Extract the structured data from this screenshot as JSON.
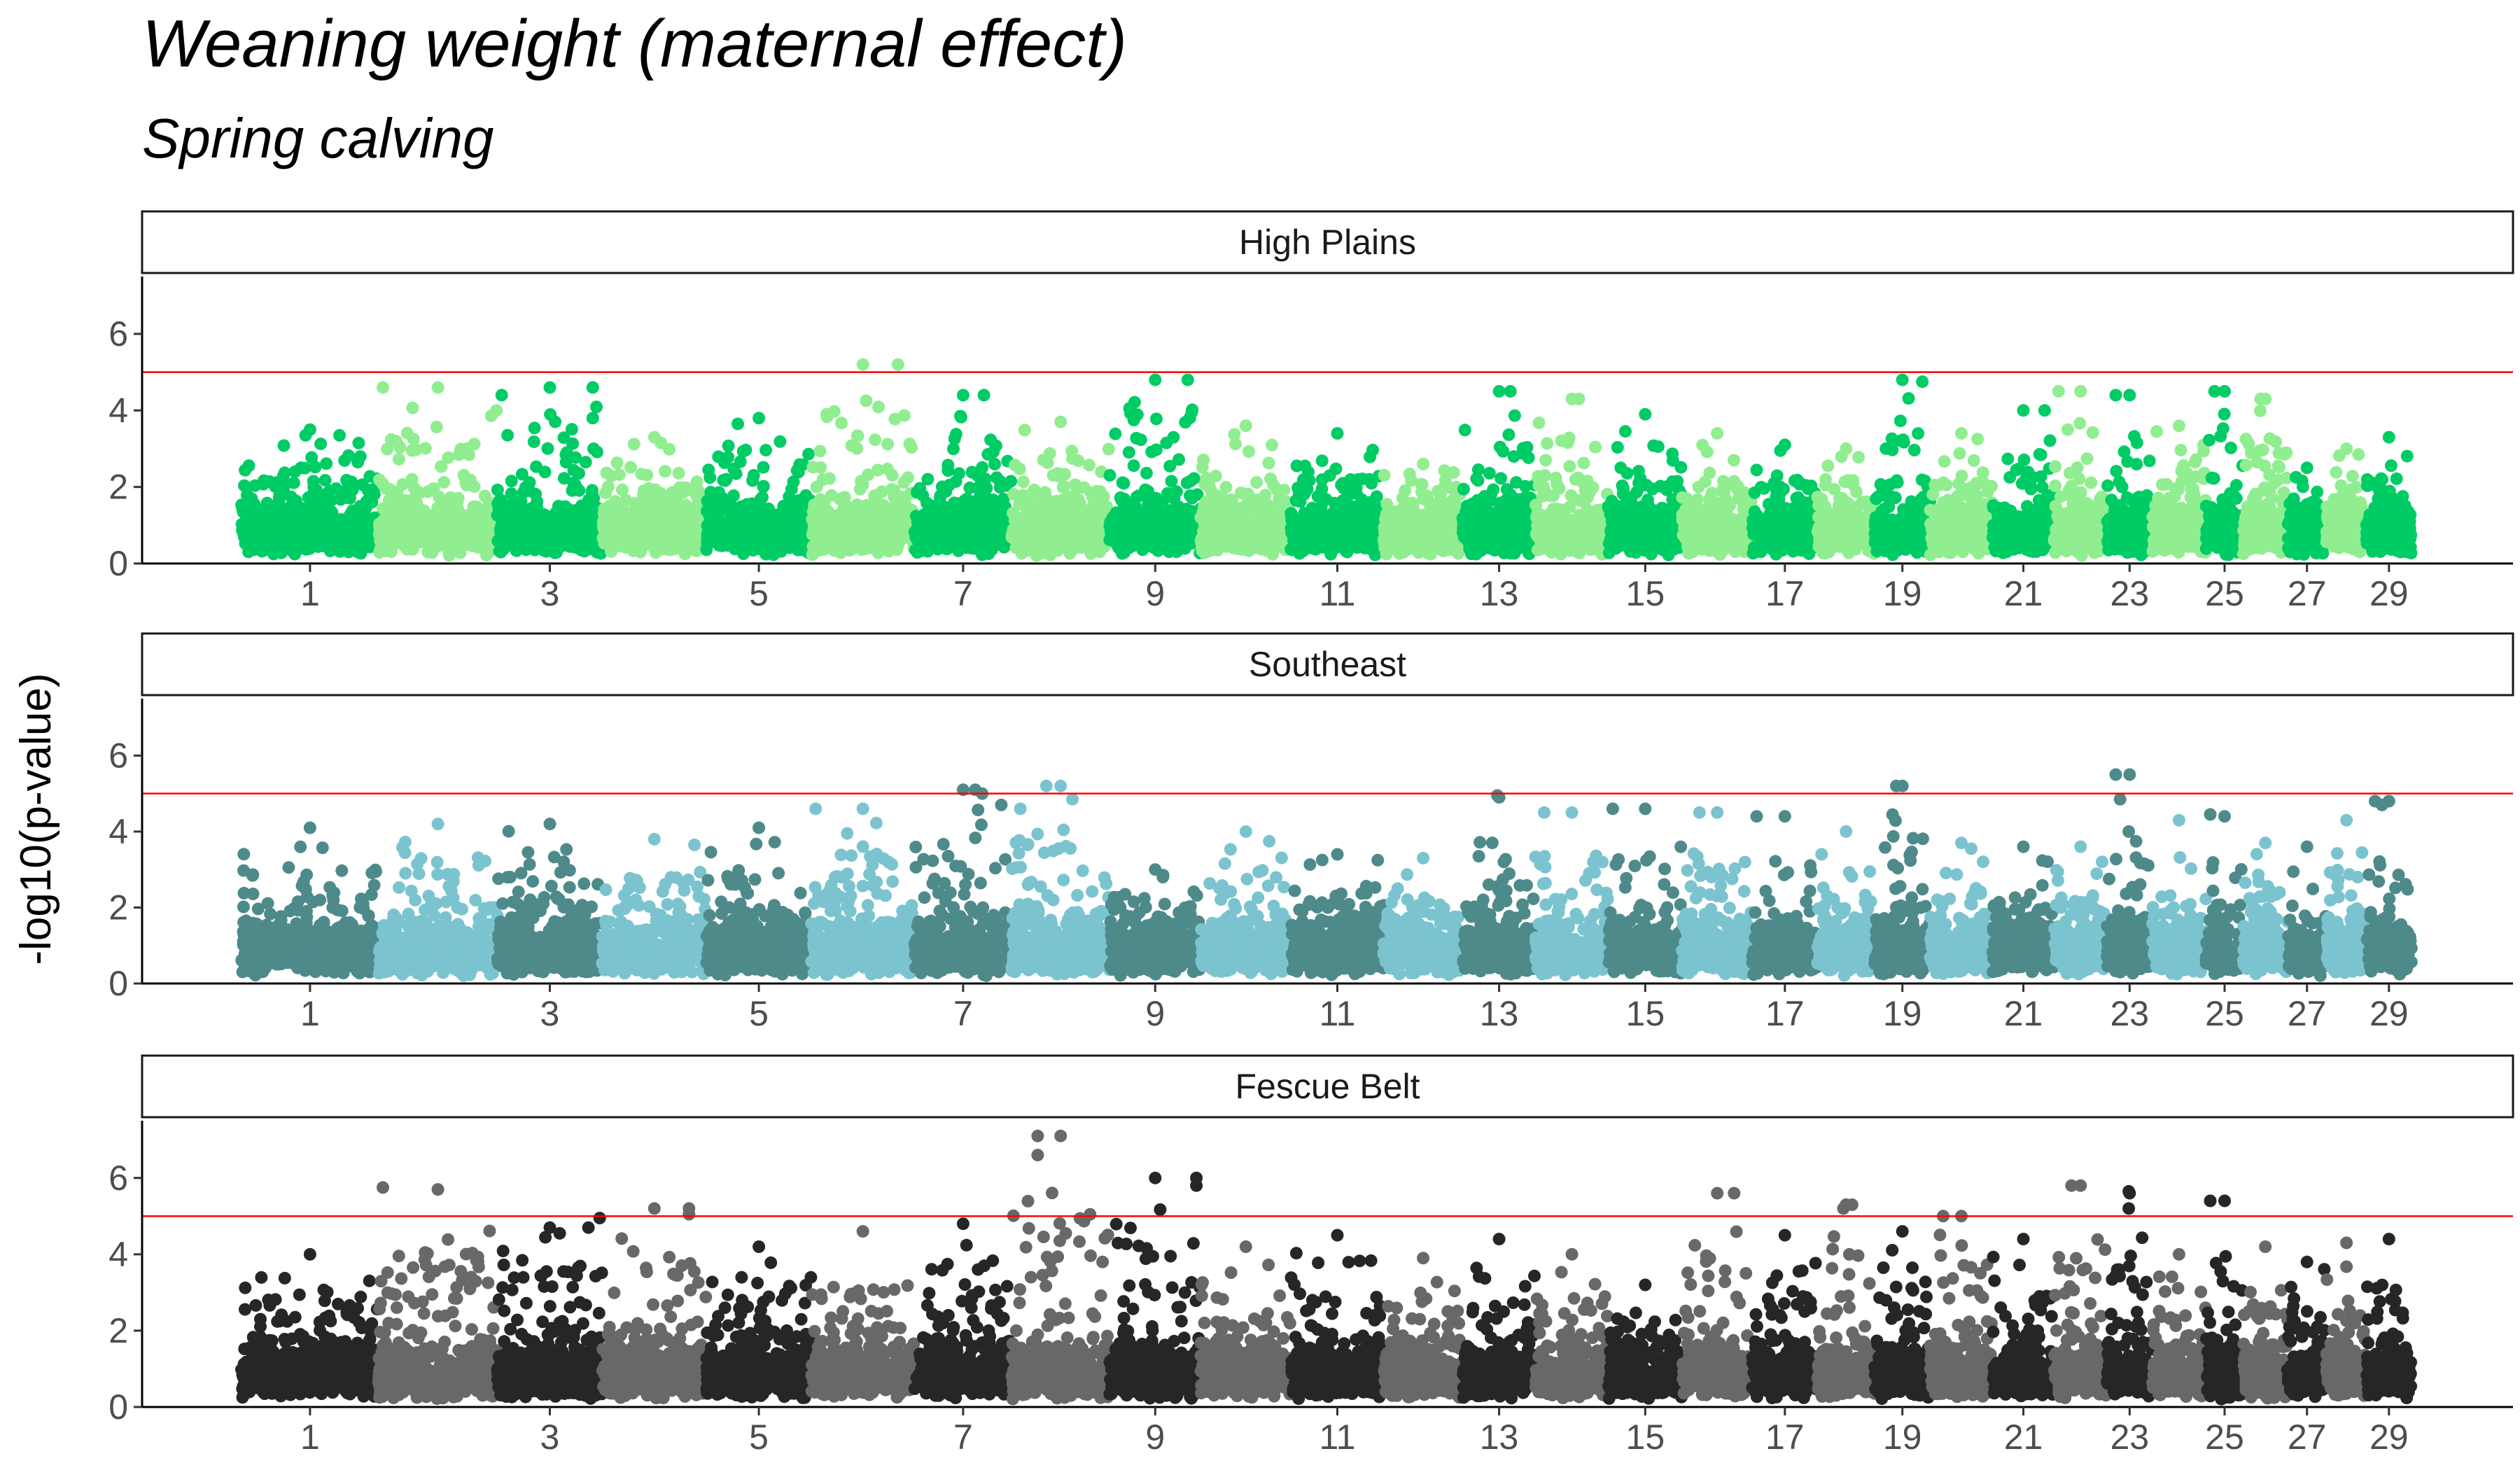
{
  "chart_data": {
    "type": "scatter",
    "subtype": "manhattan",
    "title": "Weaning weight (maternal effect)",
    "subtitle": "Spring calving",
    "ylabel": "-log10(p-value)",
    "xlabel": "",
    "ylim": [
      0,
      7.5
    ],
    "yticks": [
      0,
      2,
      4,
      6
    ],
    "threshold": 5,
    "threshold_color": "#ff0000",
    "chromosomes": [
      "1",
      "2",
      "3",
      "4",
      "5",
      "6",
      "7",
      "8",
      "9",
      "10",
      "11",
      "12",
      "13",
      "14",
      "15",
      "16",
      "17",
      "18",
      "19",
      "20",
      "21",
      "22",
      "23",
      "24",
      "25",
      "26",
      "27",
      "28",
      "29"
    ],
    "xtick_labels": [
      "1",
      "3",
      "5",
      "7",
      "9",
      "11",
      "13",
      "15",
      "17",
      "19",
      "21",
      "23",
      "25",
      "27",
      "29"
    ],
    "chromosome_lengths_mb": [
      158,
      137,
      121,
      120,
      121,
      119,
      112,
      113,
      105,
      104,
      107,
      91,
      84,
      84,
      85,
      81,
      75,
      66,
      64,
      72,
      71,
      61,
      52,
      62,
      43,
      51,
      45,
      46,
      52
    ],
    "legend": "none",
    "grid": false,
    "panels": [
      {
        "name": "High Plains",
        "colors": [
          "#00cc66",
          "#90ee90"
        ],
        "max_by_chromosome": [
          3.5,
          4.6,
          4.6,
          3.3,
          3.8,
          5.2,
          4.4,
          3.7,
          4.8,
          3.6,
          3.4,
          2.6,
          4.5,
          4.3,
          3.9,
          3.4,
          3.1,
          3.0,
          4.8,
          3.4,
          4.0,
          4.5,
          4.4,
          3.6,
          4.5,
          4.3,
          2.5,
          3.0,
          3.3
        ],
        "top_hits": [
          {
            "chr": "6",
            "pos_mb": 100,
            "y": 5.2
          },
          {
            "chr": "9",
            "pos_mb": 90,
            "y": 4.8
          },
          {
            "chr": "19",
            "pos_mb": 55,
            "y": 4.75
          },
          {
            "chr": "2",
            "pos_mb": 5,
            "y": 4.6
          },
          {
            "chr": "3",
            "pos_mb": 110,
            "y": 4.6
          },
          {
            "chr": "13",
            "pos_mb": 55,
            "y": 4.5
          },
          {
            "chr": "25",
            "pos_mb": 10,
            "y": 4.5
          },
          {
            "chr": "22",
            "pos_mb": 5,
            "y": 4.5
          },
          {
            "chr": "3",
            "pos_mb": 5,
            "y": 4.4
          },
          {
            "chr": "7",
            "pos_mb": 80,
            "y": 4.4
          },
          {
            "chr": "23",
            "pos_mb": 10,
            "y": 4.4
          },
          {
            "chr": "14",
            "pos_mb": 50,
            "y": 4.3
          },
          {
            "chr": "26",
            "pos_mb": 20,
            "y": 4.3
          },
          {
            "chr": "9",
            "pos_mb": 95,
            "y": 4.0
          },
          {
            "chr": "21",
            "pos_mb": 60,
            "y": 4.0
          },
          {
            "chr": "3",
            "pos_mb": 110,
            "y": 3.8
          }
        ]
      },
      {
        "name": "Southeast",
        "colors": [
          "#4f8a8b",
          "#7bc4cf"
        ],
        "max_by_chromosome": [
          4.1,
          4.2,
          4.2,
          3.8,
          4.1,
          4.6,
          5.1,
          5.2,
          3.0,
          4.0,
          3.4,
          3.3,
          4.9,
          4.5,
          4.6,
          4.5,
          4.4,
          4.0,
          5.2,
          3.7,
          3.6,
          3.6,
          5.5,
          4.3,
          4.4,
          3.7,
          3.6,
          4.3,
          4.8
        ],
        "top_hits": [
          {
            "chr": "23",
            "pos_mb": 10,
            "y": 5.5
          },
          {
            "chr": "8",
            "pos_mb": 40,
            "y": 5.2
          },
          {
            "chr": "19",
            "pos_mb": 25,
            "y": 5.2
          },
          {
            "chr": "7",
            "pos_mb": 70,
            "y": 5.1
          },
          {
            "chr": "7",
            "pos_mb": 78,
            "y": 5.0
          },
          {
            "chr": "13",
            "pos_mb": 40,
            "y": 4.95
          },
          {
            "chr": "8",
            "pos_mb": 70,
            "y": 4.85
          },
          {
            "chr": "23",
            "pos_mb": 15,
            "y": 4.85
          },
          {
            "chr": "29",
            "pos_mb": 10,
            "y": 4.8
          },
          {
            "chr": "29",
            "pos_mb": 18,
            "y": 4.7
          },
          {
            "chr": "7",
            "pos_mb": 100,
            "y": 4.7
          },
          {
            "chr": "8",
            "pos_mb": 10,
            "y": 4.6
          },
          {
            "chr": "6",
            "pos_mb": 5,
            "y": 4.6
          },
          {
            "chr": "15",
            "pos_mb": 5,
            "y": 4.6
          },
          {
            "chr": "14",
            "pos_mb": 10,
            "y": 4.5
          },
          {
            "chr": "16",
            "pos_mb": 20,
            "y": 4.5
          },
          {
            "chr": "25",
            "pos_mb": 5,
            "y": 4.45
          },
          {
            "chr": "17",
            "pos_mb": 5,
            "y": 4.4
          }
        ]
      },
      {
        "name": "Fescue Belt",
        "colors": [
          "#262626",
          "#686868"
        ],
        "max_by_chromosome": [
          4.0,
          5.7,
          4.7,
          5.2,
          4.2,
          4.6,
          4.8,
          7.1,
          6.0,
          4.2,
          4.5,
          3.9,
          4.4,
          4.0,
          3.2,
          5.6,
          4.5,
          5.3,
          4.6,
          5.0,
          4.4,
          5.8,
          5.6,
          4.0,
          5.4,
          4.2,
          3.8,
          4.3,
          4.4
        ],
        "top_hits": [
          {
            "chr": "8",
            "pos_mb": 30,
            "y": 7.1
          },
          {
            "chr": "8",
            "pos_mb": 30,
            "y": 6.6
          },
          {
            "chr": "9",
            "pos_mb": 100,
            "y": 6.0
          },
          {
            "chr": "9",
            "pos_mb": 100,
            "y": 5.8
          },
          {
            "chr": "22",
            "pos_mb": 20,
            "y": 5.8
          },
          {
            "chr": "2",
            "pos_mb": 5,
            "y": 5.75
          },
          {
            "chr": "23",
            "pos_mb": 25,
            "y": 5.65
          },
          {
            "chr": "16",
            "pos_mb": 60,
            "y": 5.6
          },
          {
            "chr": "25",
            "pos_mb": 5,
            "y": 5.4
          },
          {
            "chr": "18",
            "pos_mb": 40,
            "y": 5.3
          },
          {
            "chr": "4",
            "pos_mb": 100,
            "y": 5.2
          },
          {
            "chr": "18",
            "pos_mb": 30,
            "y": 5.2
          },
          {
            "chr": "23",
            "pos_mb": 25,
            "y": 5.2
          },
          {
            "chr": "4",
            "pos_mb": 100,
            "y": 5.05
          },
          {
            "chr": "20",
            "pos_mb": 15,
            "y": 5.0
          },
          {
            "chr": "3",
            "pos_mb": 118,
            "y": 4.95
          },
          {
            "chr": "3",
            "pos_mb": 105,
            "y": 4.7
          }
        ]
      }
    ]
  }
}
